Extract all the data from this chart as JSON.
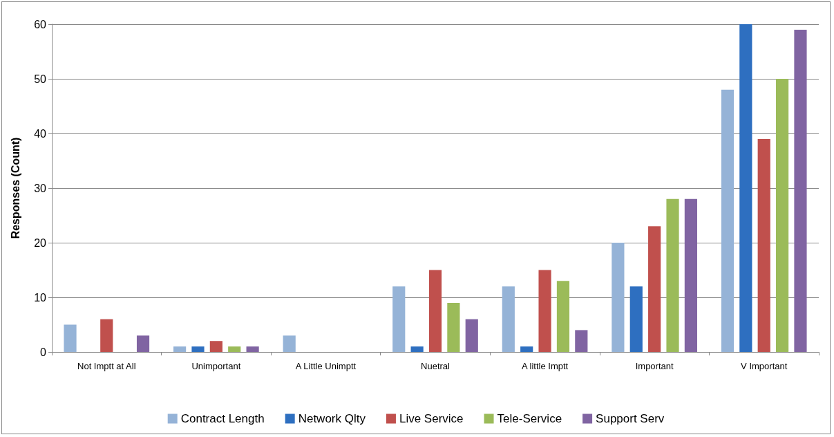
{
  "chart_data": {
    "type": "bar",
    "ylabel": "Responses (Count)",
    "categories": [
      "Not Imptt at All",
      "Unimportant",
      "A Little Unimptt",
      "Nuetral",
      "A little Imptt",
      "Important",
      "V Important"
    ],
    "series": [
      {
        "name": "Contract Length",
        "color": "#95b3d7",
        "values": [
          5,
          1,
          3,
          12,
          12,
          20,
          48
        ]
      },
      {
        "name": "Network Qlty",
        "color": "#2e6fc0",
        "values": [
          0,
          1,
          0,
          1,
          1,
          12,
          60
        ]
      },
      {
        "name": "Live Service",
        "color": "#c0504d",
        "values": [
          6,
          2,
          0,
          15,
          15,
          23,
          39
        ]
      },
      {
        "name": "Tele-Service",
        "color": "#9bbb59",
        "values": [
          0,
          1,
          0,
          9,
          13,
          28,
          50
        ]
      },
      {
        "name": "Support Serv",
        "color": "#8064a2",
        "values": [
          3,
          1,
          0,
          6,
          4,
          28,
          59
        ]
      }
    ],
    "ylim": [
      0,
      60
    ],
    "yticks": [
      0,
      10,
      20,
      30,
      40,
      50,
      60
    ],
    "grid": "y",
    "legend": "bottom"
  }
}
